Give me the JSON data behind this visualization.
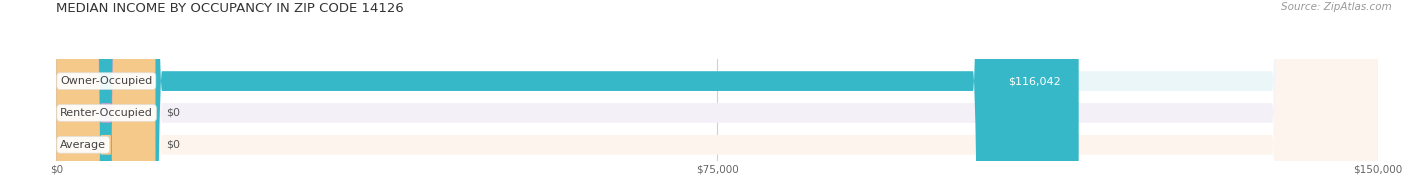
{
  "title": "MEDIAN INCOME BY OCCUPANCY IN ZIP CODE 14126",
  "source": "Source: ZipAtlas.com",
  "categories": [
    "Owner-Occupied",
    "Renter-Occupied",
    "Average"
  ],
  "values": [
    116042,
    0,
    0
  ],
  "bar_colors": [
    "#36b8c8",
    "#c4a0d0",
    "#f5c98a"
  ],
  "bar_bg_colors": [
    "#eaf6f8",
    "#f4f0f8",
    "#fdf5ed"
  ],
  "value_labels": [
    "$116,042",
    "$0",
    "$0"
  ],
  "xlim": [
    0,
    150000
  ],
  "xticks": [
    0,
    75000,
    150000
  ],
  "xtick_labels": [
    "$0",
    "$75,000",
    "$150,000"
  ],
  "background_color": "#ffffff",
  "figsize": [
    14.06,
    1.96
  ],
  "dpi": 100
}
